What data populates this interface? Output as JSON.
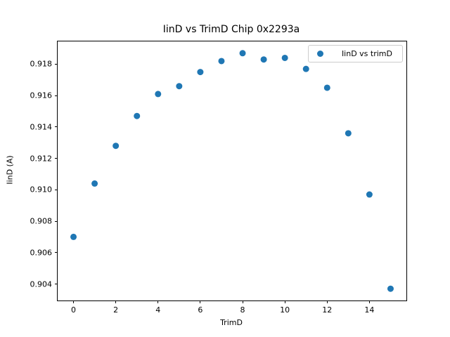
{
  "chart_data": {
    "type": "scatter",
    "title": "IinD vs TrimD Chip 0x2293a",
    "xlabel": "TrimD",
    "ylabel": "IinD (A)",
    "series": [
      {
        "name": "IinD vs trimD",
        "x": [
          0,
          1,
          2,
          3,
          4,
          5,
          6,
          7,
          8,
          9,
          10,
          11,
          12,
          13,
          14,
          15
        ],
        "y": [
          0.907,
          0.9104,
          0.9128,
          0.9147,
          0.9161,
          0.9166,
          0.9175,
          0.9182,
          0.9187,
          0.9183,
          0.9184,
          0.9177,
          0.9165,
          0.9136,
          0.9097,
          0.9037
        ],
        "marker_color": "#1f77b4"
      }
    ],
    "xlim": [
      -0.75,
      15.75
    ],
    "ylim": [
      0.90295,
      0.91945
    ],
    "x_ticks": {
      "values": [
        0,
        2,
        4,
        6,
        8,
        10,
        12,
        14
      ],
      "labels": [
        "0",
        "2",
        "4",
        "6",
        "8",
        "10",
        "12",
        "14"
      ]
    },
    "y_ticks": {
      "values": [
        0.904,
        0.906,
        0.908,
        0.91,
        0.912,
        0.914,
        0.916,
        0.918
      ],
      "labels": [
        "0.904",
        "0.906",
        "0.908",
        "0.910",
        "0.912",
        "0.914",
        "0.916",
        "0.918"
      ]
    },
    "grid": false,
    "legend": {
      "position": "upper right",
      "entries": [
        "IinD vs trimD"
      ]
    }
  }
}
